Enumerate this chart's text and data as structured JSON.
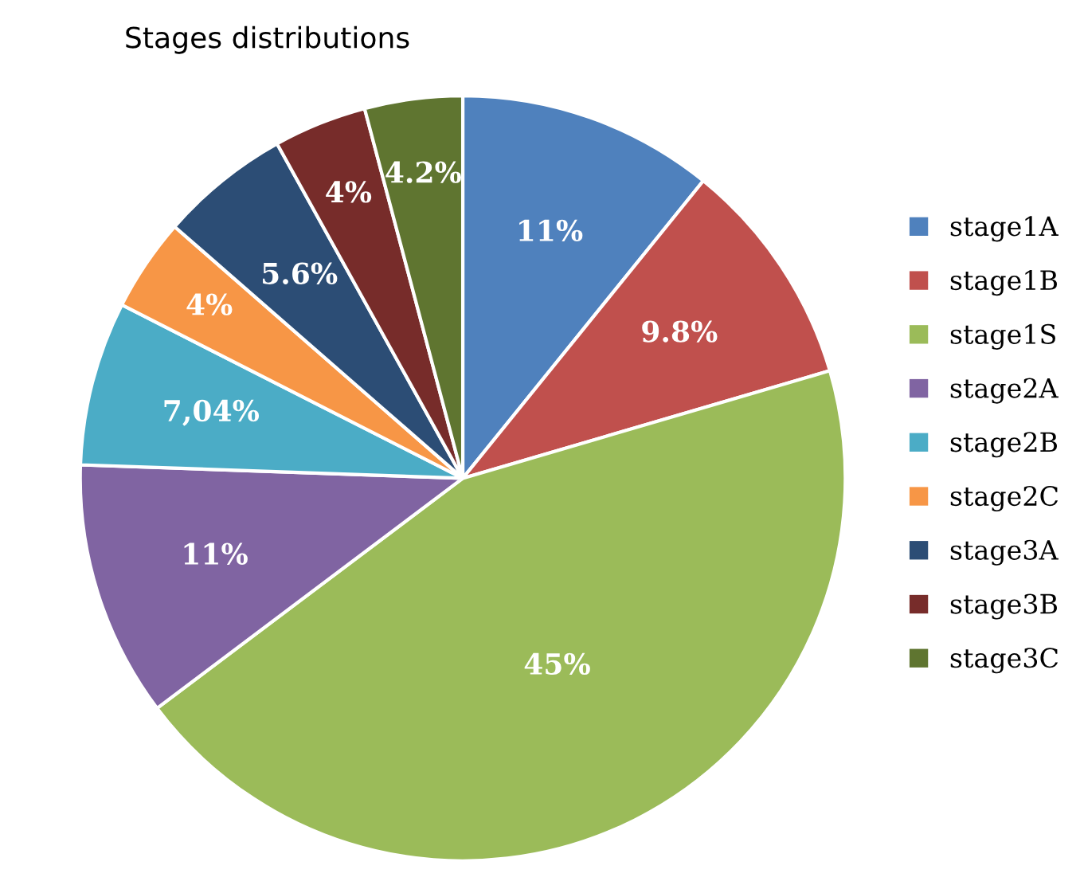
{
  "chart_data": {
    "type": "pie",
    "title": "Stages distributions",
    "categories": [
      "stage1A",
      "stage1B",
      "stage1S",
      "stage2A",
      "stage2B",
      "stage2C",
      "stage3A",
      "stage3B",
      "stage3C"
    ],
    "values": [
      11,
      9.8,
      45,
      11,
      7.04,
      4,
      5.6,
      4,
      4.2
    ],
    "value_labels": [
      "11%",
      "9.8%",
      "45%",
      "11%",
      "7,04%",
      "4%",
      "5.6%",
      "4%",
      "4.2%"
    ],
    "colors": [
      "#4f81bd",
      "#c0504d",
      "#9bbb59",
      "#8064a2",
      "#4bacc6",
      "#f79646",
      "#2c4d75",
      "#772c2a",
      "#5f7530"
    ],
    "legend": "right"
  }
}
